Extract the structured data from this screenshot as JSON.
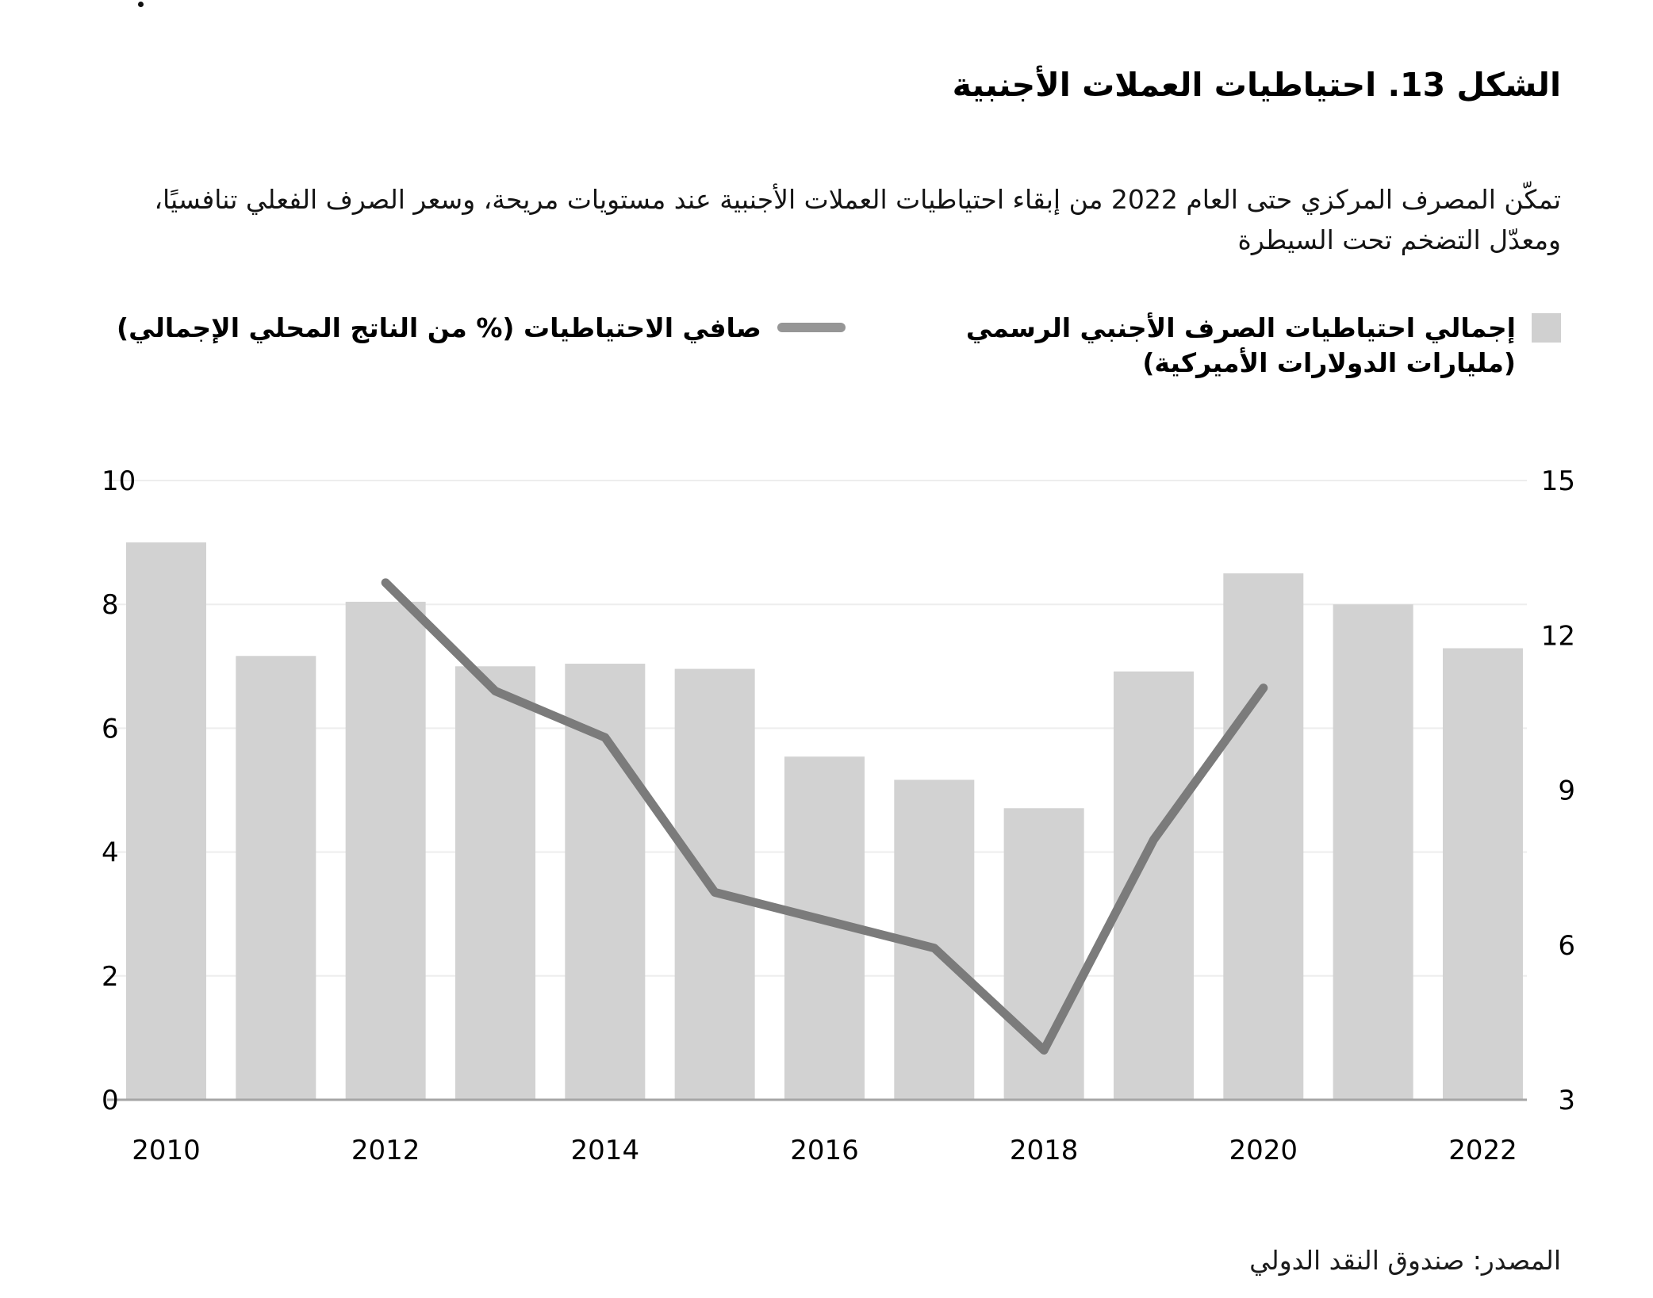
{
  "decoration": {
    "dot": ""
  },
  "header": {
    "title": "الشكل 13. احتياطيات العملات الأجنبية",
    "subtitle": "تمكّن المصرف المركزي حتى العام 2022 من إبقاء احتياطيات العملات الأجنبية عند مستويات مريحة، وسعر الصرف الفعلي تنافسيًا، ومعدّل التضخم تحت السيطرة"
  },
  "legend": {
    "bars_item": {
      "line1": "إجمالي احتياطيات الصرف الأجنبي الرسمي",
      "line2": "(مليارات الدولارات الأميركية)",
      "marker_color": "#d0d0d0"
    },
    "line_item": {
      "label": "صافي الاحتياطيات (% من الناتج المحلي الإجمالي)",
      "marker_color": "#969696"
    }
  },
  "source_note": "المصدر: صندوق النقد الدولي",
  "chart_data": {
    "type": "bar",
    "title": "الشكل 13. احتياطيات العملات الأجنبية",
    "categories": [
      2010,
      2011,
      2012,
      2013,
      2014,
      2015,
      2016,
      2017,
      2018,
      2019,
      2020,
      2021,
      2022
    ],
    "series": [
      {
        "name": "إجمالي احتياطيات الصرف الأجنبي الرسمي (مليارات الدولارات الأميركية)",
        "type": "bar",
        "axis": "right",
        "color": "#d2d2d2",
        "values": [
          13.8,
          11.6,
          12.65,
          11.4,
          11.45,
          11.35,
          9.65,
          9.2,
          8.65,
          11.3,
          13.2,
          12.6,
          11.75
        ]
      },
      {
        "name": "صافي الاحتياطيات (% من الناتج المحلي الإجمالي)",
        "type": "line",
        "axis": "left",
        "color": "#7b7b7b",
        "x": [
          2012,
          2013,
          2014,
          2015,
          2016,
          2017,
          2018,
          2019,
          2020
        ],
        "values": [
          8.35,
          6.6,
          5.85,
          3.35,
          2.9,
          2.45,
          0.8,
          4.2,
          6.65
        ]
      }
    ],
    "left_axis": {
      "range": [
        0,
        10
      ],
      "ticks": [
        0,
        2,
        4,
        6,
        8,
        10
      ]
    },
    "right_axis": {
      "range": [
        3,
        15
      ],
      "ticks": [
        3,
        6,
        9,
        12,
        15
      ]
    },
    "x_ticks": [
      2010,
      2012,
      2014,
      2016,
      2018,
      2020,
      2022
    ],
    "grid": true,
    "legend_position": "top",
    "colors": {
      "gridline": "#ededed",
      "baseline": "#a6a6a6",
      "tick_text": "#000000"
    }
  }
}
